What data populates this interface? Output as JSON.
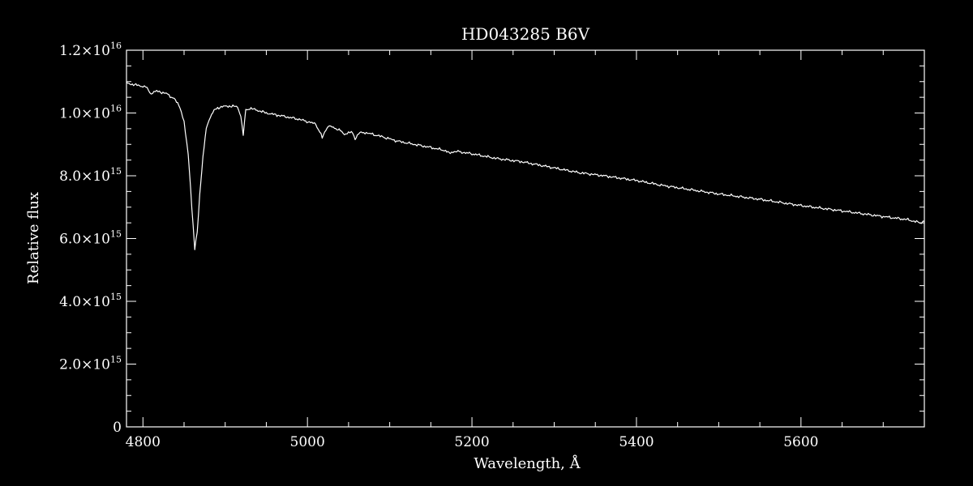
{
  "chart_data": {
    "type": "line",
    "title": "HD043285   B6V",
    "xlabel": "Wavelength, Å",
    "ylabel": "Relative flux",
    "xlim": [
      4780,
      5750
    ],
    "ylim": [
      0,
      1.2e+16
    ],
    "x_ticks": [
      4800,
      5000,
      5200,
      5400,
      5600
    ],
    "x_tick_labels": [
      "4800",
      "5000",
      "5200",
      "5400",
      "5600"
    ],
    "y_ticks": [
      0,
      2000000000000000.0,
      4000000000000000.0,
      6000000000000000.0,
      8000000000000000.0,
      1e+16,
      1.2e+16
    ],
    "y_tick_labels": [
      {
        "mant": "0",
        "exp": ""
      },
      {
        "mant": "2.0×10",
        "exp": "15"
      },
      {
        "mant": "4.0×10",
        "exp": "15"
      },
      {
        "mant": "6.0×10",
        "exp": "15"
      },
      {
        "mant": "8.0×10",
        "exp": "15"
      },
      {
        "mant": "1.0×10",
        "exp": "16"
      },
      {
        "mant": "1.2×10",
        "exp": "16"
      }
    ],
    "line_color": "#ffffff",
    "background": "#000000",
    "grid": false,
    "series": [
      {
        "x": [
          4780,
          4790,
          4800,
          4805,
          4810,
          4815,
          4820,
          4830,
          4838,
          4845,
          4850,
          4855,
          4858,
          4861,
          4863,
          4866,
          4869,
          4873,
          4877,
          4882,
          4888,
          4895,
          4905,
          4915,
          4919,
          4922,
          4925,
          4930,
          4940,
          4950,
          4960,
          4970,
          4990,
          5010,
          5015,
          5018,
          5021,
          5025,
          5030,
          5040,
          5045,
          5050,
          5055,
          5058,
          5062,
          5070,
          5090,
          5110,
          5130,
          5150,
          5168,
          5172,
          5180,
          5200,
          5230,
          5260,
          5300,
          5330,
          5360,
          5400,
          5430,
          5450,
          5500,
          5550,
          5600,
          5650,
          5700,
          5730,
          5745,
          5750
        ],
        "y": [
          1.095e+16,
          1.09e+16,
          1.085e+16,
          1.08e+16,
          1.06e+16,
          1.07e+16,
          1.068e+16,
          1.06e+16,
          1.045e+16,
          1.02e+16,
          9700000000000000.0,
          8700000000000000.0,
          7600000000000000.0,
          6400000000000000.0,
          5650000000000000.0,
          6200000000000000.0,
          7400000000000000.0,
          8600000000000000.0,
          9500000000000000.0,
          9900000000000000.0,
          1.012e+16,
          1.02e+16,
          1.022e+16,
          1.02e+16,
          9900000000000000.0,
          9300000000000000.0,
          1.01e+16,
          1.015e+16,
          1.008e+16,
          1e+16,
          9950000000000000.0,
          9900000000000000.0,
          9800000000000000.0,
          9650000000000000.0,
          9400000000000000.0,
          9200000000000000.0,
          9400000000000000.0,
          9580000000000000.0,
          9550000000000000.0,
          9450000000000000.0,
          9300000000000000.0,
          9400000000000000.0,
          9350000000000000.0,
          9180000000000000.0,
          9350000000000000.0,
          9380000000000000.0,
          9250000000000000.0,
          9100000000000000.0,
          9000000000000000.0,
          8900000000000000.0,
          8800000000000000.0,
          8720000000000000.0,
          8780000000000000.0,
          8700000000000000.0,
          8550000000000000.0,
          8450000000000000.0,
          8250000000000000.0,
          8100000000000000.0,
          8000000000000000.0,
          7850000000000000.0,
          7700000000000000.0,
          7620000000000000.0,
          7420000000000000.0,
          7250000000000000.0,
          7050000000000000.0,
          6880000000000000.0,
          6700000000000000.0,
          6600000000000000.0,
          6500000000000000.0,
          6550000000000000.0
        ]
      }
    ]
  }
}
